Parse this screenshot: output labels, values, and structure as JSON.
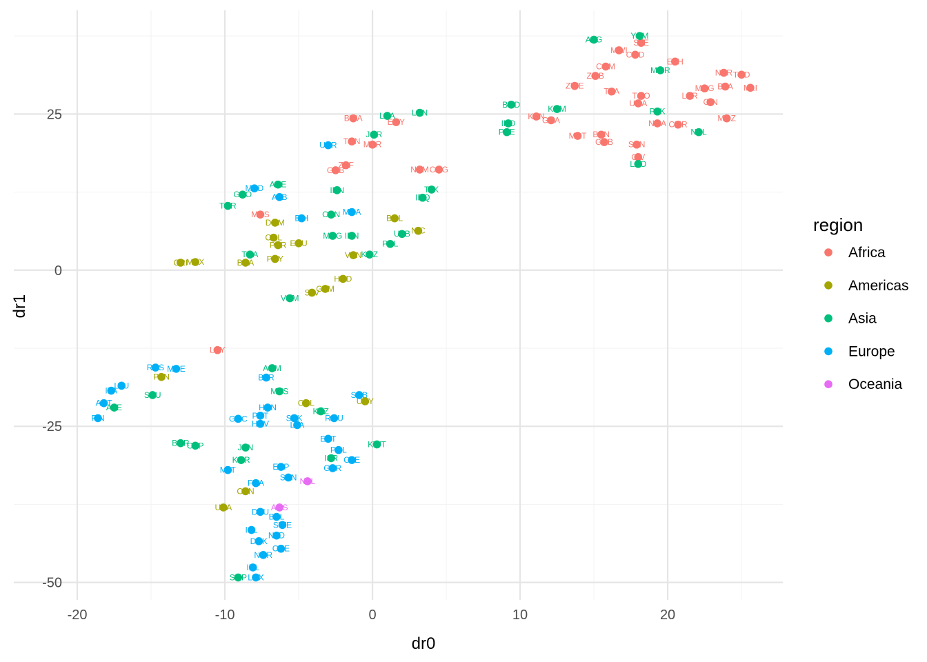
{
  "chart_data": {
    "type": "scatter",
    "title": "",
    "xlabel": "dr0",
    "ylabel": "dr1",
    "xlim": [
      -24.3,
      27.8
    ],
    "ylim": [
      -52.8,
      41.6
    ],
    "xticks": [
      -20,
      -10,
      0,
      10,
      20
    ],
    "yticks": [
      -50,
      -25,
      0,
      25
    ],
    "grid": true,
    "legend": {
      "title": "region",
      "position": "right"
    },
    "regions": [
      {
        "name": "Africa",
        "color": "#F8766D"
      },
      {
        "name": "Americas",
        "color": "#A3A500"
      },
      {
        "name": "Asia",
        "color": "#00BF7D"
      },
      {
        "name": "Europe",
        "color": "#00B0F6"
      },
      {
        "name": "Oceania",
        "color": "#E76BF3"
      }
    ],
    "points": [
      {
        "label": "MWI",
        "region": "Africa",
        "x": 16.7,
        "y": 35.2
      },
      {
        "label": "COD",
        "region": "Africa",
        "x": 17.8,
        "y": 34.5
      },
      {
        "label": "SLE",
        "region": "Africa",
        "x": 18.2,
        "y": 36.4
      },
      {
        "label": "COM",
        "region": "Africa",
        "x": 15.8,
        "y": 32.6
      },
      {
        "label": "ETH",
        "region": "Africa",
        "x": 20.5,
        "y": 33.4
      },
      {
        "label": "ZMB",
        "region": "Africa",
        "x": 15.1,
        "y": 31.1
      },
      {
        "label": "ZWE",
        "region": "Africa",
        "x": 13.7,
        "y": 29.5
      },
      {
        "label": "TZA",
        "region": "Africa",
        "x": 16.2,
        "y": 28.6
      },
      {
        "label": "NER",
        "region": "Africa",
        "x": 23.8,
        "y": 31.6
      },
      {
        "label": "TCD",
        "region": "Africa",
        "x": 25.0,
        "y": 31.3
      },
      {
        "label": "MDG",
        "region": "Africa",
        "x": 22.5,
        "y": 29.1
      },
      {
        "label": "BFA",
        "region": "Africa",
        "x": 23.9,
        "y": 29.4
      },
      {
        "label": "MLI",
        "region": "Africa",
        "x": 25.6,
        "y": 29.2
      },
      {
        "label": "LBR",
        "region": "Africa",
        "x": 21.5,
        "y": 27.9
      },
      {
        "label": "TGO",
        "region": "Africa",
        "x": 18.2,
        "y": 27.9
      },
      {
        "label": "UGA",
        "region": "Africa",
        "x": 18.0,
        "y": 26.7
      },
      {
        "label": "GIN",
        "region": "Africa",
        "x": 22.9,
        "y": 26.9
      },
      {
        "label": "KEN",
        "region": "Africa",
        "x": 11.1,
        "y": 24.6
      },
      {
        "label": "GHA",
        "region": "Africa",
        "x": 12.1,
        "y": 24.0
      },
      {
        "label": "MOZ",
        "region": "Africa",
        "x": 24.0,
        "y": 24.3
      },
      {
        "label": "NGA",
        "region": "Africa",
        "x": 19.3,
        "y": 23.5
      },
      {
        "label": "CMR",
        "region": "Africa",
        "x": 20.7,
        "y": 23.3
      },
      {
        "label": "MRT",
        "region": "Africa",
        "x": 13.9,
        "y": 21.5
      },
      {
        "label": "BEN",
        "region": "Africa",
        "x": 15.5,
        "y": 21.7
      },
      {
        "label": "GNB",
        "region": "Africa",
        "x": 15.7,
        "y": 20.5
      },
      {
        "label": "SEN",
        "region": "Africa",
        "x": 17.9,
        "y": 20.1
      },
      {
        "label": "CIV",
        "region": "Africa",
        "x": 18.0,
        "y": 18.1
      },
      {
        "label": "BWA",
        "region": "Africa",
        "x": -1.3,
        "y": 24.3
      },
      {
        "label": "EGY",
        "region": "Africa",
        "x": 1.6,
        "y": 23.7
      },
      {
        "label": "TUN",
        "region": "Africa",
        "x": -1.4,
        "y": 20.6
      },
      {
        "label": "MAR",
        "region": "Africa",
        "x": 0.0,
        "y": 20.1
      },
      {
        "label": "ZAF",
        "region": "Africa",
        "x": -1.8,
        "y": 16.8
      },
      {
        "label": "GAB",
        "region": "Africa",
        "x": -2.5,
        "y": 16.0
      },
      {
        "label": "NAM",
        "region": "Africa",
        "x": 3.2,
        "y": 16.1
      },
      {
        "label": "COG",
        "region": "Africa",
        "x": 4.5,
        "y": 16.1
      },
      {
        "label": "MUS",
        "region": "Africa",
        "x": -7.6,
        "y": 8.9
      },
      {
        "label": "LBY",
        "region": "Africa",
        "x": -10.5,
        "y": -12.8
      },
      {
        "label": "AFG",
        "region": "Asia",
        "x": 15.0,
        "y": 36.9
      },
      {
        "label": "YEM",
        "region": "Asia",
        "x": 18.1,
        "y": 37.5
      },
      {
        "label": "MMR",
        "region": "Asia",
        "x": 19.5,
        "y": 32.0
      },
      {
        "label": "BGD",
        "region": "Asia",
        "x": 9.4,
        "y": 26.5
      },
      {
        "label": "KHM",
        "region": "Asia",
        "x": 12.5,
        "y": 25.8
      },
      {
        "label": "IND",
        "region": "Asia",
        "x": 9.2,
        "y": 23.5
      },
      {
        "label": "PSE",
        "region": "Asia",
        "x": 9.1,
        "y": 22.1
      },
      {
        "label": "PAK",
        "region": "Asia",
        "x": 19.3,
        "y": 25.4
      },
      {
        "label": "NPL",
        "region": "Asia",
        "x": 22.1,
        "y": 22.1
      },
      {
        "label": "LAO",
        "region": "Asia",
        "x": 18.0,
        "y": 17.0
      },
      {
        "label": "LKA",
        "region": "Asia",
        "x": 1.0,
        "y": 24.7
      },
      {
        "label": "LBN",
        "region": "Asia",
        "x": 3.2,
        "y": 25.2
      },
      {
        "label": "JOR",
        "region": "Asia",
        "x": 0.1,
        "y": 21.7
      },
      {
        "label": "ARE",
        "region": "Asia",
        "x": -6.4,
        "y": 13.7
      },
      {
        "label": "GEO",
        "region": "Asia",
        "x": -8.8,
        "y": 12.1
      },
      {
        "label": "TUR",
        "region": "Asia",
        "x": -9.8,
        "y": 10.3
      },
      {
        "label": "IRN",
        "region": "Asia",
        "x": -2.4,
        "y": 12.8
      },
      {
        "label": "CHN",
        "region": "Asia",
        "x": -2.8,
        "y": 8.9
      },
      {
        "label": "TJK",
        "region": "Asia",
        "x": 4.0,
        "y": 12.9
      },
      {
        "label": "IRQ",
        "region": "Asia",
        "x": 3.4,
        "y": 11.6
      },
      {
        "label": "UZB",
        "region": "Asia",
        "x": 2.0,
        "y": 5.8
      },
      {
        "label": "MNG",
        "region": "Asia",
        "x": -2.7,
        "y": 5.5
      },
      {
        "label": "IDN",
        "region": "Asia",
        "x": -1.4,
        "y": 5.5
      },
      {
        "label": "PHL",
        "region": "Asia",
        "x": 1.2,
        "y": 4.2
      },
      {
        "label": "KGZ",
        "region": "Asia",
        "x": -0.2,
        "y": 2.5
      },
      {
        "label": "THA",
        "region": "Asia",
        "x": -8.3,
        "y": 2.5
      },
      {
        "label": "VNM",
        "region": "Asia",
        "x": -5.6,
        "y": -4.5
      },
      {
        "label": "ARM",
        "region": "Asia",
        "x": -6.8,
        "y": -15.7
      },
      {
        "label": "MYS",
        "region": "Asia",
        "x": -6.3,
        "y": -19.4
      },
      {
        "label": "KAZ",
        "region": "Asia",
        "x": -3.5,
        "y": -22.6
      },
      {
        "label": "SAU",
        "region": "Asia",
        "x": -14.9,
        "y": -20.0
      },
      {
        "label": "AZE",
        "region": "Asia",
        "x": -17.5,
        "y": -22.0
      },
      {
        "label": "BHR",
        "region": "Asia",
        "x": -13.0,
        "y": -27.7
      },
      {
        "label": "CYP",
        "region": "Asia",
        "x": -12.0,
        "y": -28.1
      },
      {
        "label": "JPN",
        "region": "Asia",
        "x": -8.6,
        "y": -28.4
      },
      {
        "label": "KOR",
        "region": "Asia",
        "x": -8.9,
        "y": -30.4
      },
      {
        "label": "ISR",
        "region": "Asia",
        "x": -2.8,
        "y": -30.1
      },
      {
        "label": "KWT",
        "region": "Asia",
        "x": 0.3,
        "y": -27.9
      },
      {
        "label": "SGP",
        "region": "Asia",
        "x": -9.1,
        "y": -49.2
      },
      {
        "label": "UKR",
        "region": "Europe",
        "x": -3.0,
        "y": 20.0
      },
      {
        "label": "MKD",
        "region": "Europe",
        "x": -8.0,
        "y": 13.1
      },
      {
        "label": "ALB",
        "region": "Europe",
        "x": -6.3,
        "y": 11.7
      },
      {
        "label": "BIH",
        "region": "Europe",
        "x": -4.8,
        "y": 8.3
      },
      {
        "label": "MDA",
        "region": "Europe",
        "x": -1.4,
        "y": 9.3
      },
      {
        "label": "RUS",
        "region": "Europe",
        "x": -14.7,
        "y": -15.6
      },
      {
        "label": "MNE",
        "region": "Europe",
        "x": -13.3,
        "y": -15.8
      },
      {
        "label": "LTU",
        "region": "Europe",
        "x": -17.0,
        "y": -18.5
      },
      {
        "label": "ITA",
        "region": "Europe",
        "x": -17.7,
        "y": -19.3
      },
      {
        "label": "AUT",
        "region": "Europe",
        "x": -18.2,
        "y": -21.3
      },
      {
        "label": "FIN",
        "region": "Europe",
        "x": -18.6,
        "y": -23.7
      },
      {
        "label": "BLR",
        "region": "Europe",
        "x": -7.2,
        "y": -17.2
      },
      {
        "label": "SRB",
        "region": "Europe",
        "x": -0.9,
        "y": -20.0
      },
      {
        "label": "HUN",
        "region": "Europe",
        "x": -7.1,
        "y": -22.0
      },
      {
        "label": "PRT",
        "region": "Europe",
        "x": -7.6,
        "y": -23.3
      },
      {
        "label": "GRC",
        "region": "Europe",
        "x": -9.1,
        "y": -23.8
      },
      {
        "label": "HRV",
        "region": "Europe",
        "x": -7.6,
        "y": -24.6
      },
      {
        "label": "SVK",
        "region": "Europe",
        "x": -5.3,
        "y": -23.7
      },
      {
        "label": "LVA",
        "region": "Europe",
        "x": -5.1,
        "y": -24.8
      },
      {
        "label": "ROU",
        "region": "Europe",
        "x": -2.6,
        "y": -23.7
      },
      {
        "label": "EST",
        "region": "Europe",
        "x": -3.0,
        "y": -27.0
      },
      {
        "label": "POL",
        "region": "Europe",
        "x": -2.3,
        "y": -28.8
      },
      {
        "label": "CZE",
        "region": "Europe",
        "x": -1.4,
        "y": -30.4
      },
      {
        "label": "GBR",
        "region": "Europe",
        "x": -2.7,
        "y": -31.7
      },
      {
        "label": "MLT",
        "region": "Europe",
        "x": -9.8,
        "y": -32.0
      },
      {
        "label": "ESP",
        "region": "Europe",
        "x": -6.2,
        "y": -31.5
      },
      {
        "label": "SVN",
        "region": "Europe",
        "x": -5.7,
        "y": -33.2
      },
      {
        "label": "FRA",
        "region": "Europe",
        "x": -7.9,
        "y": -34.1
      },
      {
        "label": "DEU",
        "region": "Europe",
        "x": -7.6,
        "y": -38.7
      },
      {
        "label": "BEL",
        "region": "Europe",
        "x": -6.5,
        "y": -39.5
      },
      {
        "label": "SWE",
        "region": "Europe",
        "x": -6.1,
        "y": -40.8
      },
      {
        "label": "ISL",
        "region": "Europe",
        "x": -8.2,
        "y": -41.6
      },
      {
        "label": "NLD",
        "region": "Europe",
        "x": -6.5,
        "y": -42.5
      },
      {
        "label": "DNK",
        "region": "Europe",
        "x": -7.7,
        "y": -43.4
      },
      {
        "label": "CHE",
        "region": "Europe",
        "x": -6.2,
        "y": -44.6
      },
      {
        "label": "NOR",
        "region": "Europe",
        "x": -7.4,
        "y": -45.6
      },
      {
        "label": "IRL",
        "region": "Europe",
        "x": -8.1,
        "y": -47.6
      },
      {
        "label": "LUX",
        "region": "Europe",
        "x": -7.9,
        "y": -49.2
      },
      {
        "label": "CRI",
        "region": "Americas",
        "x": -13.0,
        "y": 1.2
      },
      {
        "label": "MEX",
        "region": "Americas",
        "x": -12.0,
        "y": 1.3
      },
      {
        "label": "BRA",
        "region": "Americas",
        "x": -8.6,
        "y": 1.2
      },
      {
        "label": "DOM",
        "region": "Americas",
        "x": -6.6,
        "y": 7.6
      },
      {
        "label": "COL",
        "region": "Americas",
        "x": -6.7,
        "y": 5.2
      },
      {
        "label": "PER",
        "region": "Americas",
        "x": -6.4,
        "y": 4.0
      },
      {
        "label": "ECU",
        "region": "Americas",
        "x": -5.0,
        "y": 4.3
      },
      {
        "label": "PRY",
        "region": "Americas",
        "x": -6.6,
        "y": 1.8
      },
      {
        "label": "BOL",
        "region": "Americas",
        "x": 1.5,
        "y": 8.3
      },
      {
        "label": "NIC",
        "region": "Americas",
        "x": 3.1,
        "y": 6.3
      },
      {
        "label": "VEN",
        "region": "Americas",
        "x": -1.3,
        "y": 2.4
      },
      {
        "label": "HND",
        "region": "Americas",
        "x": -2.0,
        "y": -1.4
      },
      {
        "label": "GTM",
        "region": "Americas",
        "x": -3.2,
        "y": -3.0
      },
      {
        "label": "SLV",
        "region": "Americas",
        "x": -4.1,
        "y": -3.6
      },
      {
        "label": "PAN",
        "region": "Americas",
        "x": -14.3,
        "y": -17.1
      },
      {
        "label": "CHL",
        "region": "Americas",
        "x": -4.5,
        "y": -21.3
      },
      {
        "label": "URY",
        "region": "Americas",
        "x": -0.5,
        "y": -21.0
      },
      {
        "label": "CAN",
        "region": "Americas",
        "x": -8.6,
        "y": -35.4
      },
      {
        "label": "USA",
        "region": "Americas",
        "x": -10.1,
        "y": -38.0
      },
      {
        "label": "AUS",
        "region": "Oceania",
        "x": -6.3,
        "y": -38.0
      },
      {
        "label": "NZL",
        "region": "Oceania",
        "x": -4.4,
        "y": -33.8
      }
    ]
  }
}
